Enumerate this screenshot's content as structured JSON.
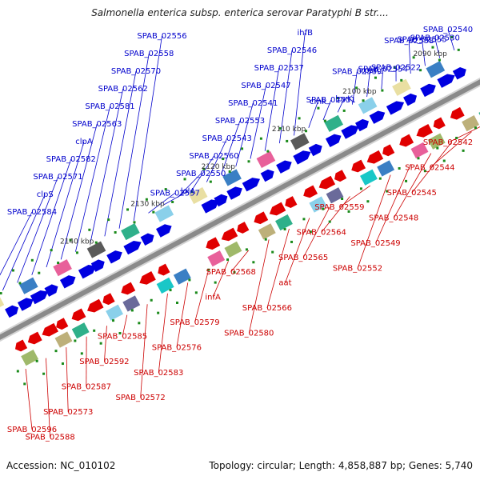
{
  "title": "Salmonella enterica subsp. enterica serovar Paratyphi B str....",
  "footer": {
    "accession": "Accession: NC_010102",
    "summary": "Topology: circular; Length: 4,858,887 bp; Genes: 5,740"
  },
  "colors": {
    "forward_label": "#0000cc",
    "reverse_label": "#cc0000",
    "backbone": "#8a8a8a",
    "forward_gene": "#0000e0",
    "reverse_gene": "#e00000",
    "marker": "#1a8a1a"
  },
  "scale_labels": [
    "2090 kbp",
    "2100 kbp",
    "2110 kbp",
    "2120 kbp",
    "2130 kbp",
    "2140 kbp"
  ],
  "forward_labels": [
    "SPAB_02540",
    "SPAB_02530",
    "SPAB_02555",
    "SPAB_02538",
    "SPAB_02522",
    "SPAB_02554",
    "rpsA",
    "SPAB_02539",
    "lpxK",
    "SPAB_02551",
    "cmk",
    "ihfB",
    "SPAB_02546",
    "SPAB_02537",
    "SPAB_02547",
    "SPAB_02541",
    "SPAB_02553",
    "SPAB_02543",
    "SPAB_02560",
    "SPAB_02550",
    "lolA",
    "SPAB_02557",
    "SPAB_02556",
    "SPAB_02558",
    "SPAB_02570",
    "SPAB_02562",
    "SPAB_02581",
    "SPAB_02563",
    "clpA",
    "SPAB_02582",
    "SPAB_02571",
    "clpS",
    "SPAB_02584"
  ],
  "reverse_labels": [
    "SPAB_02542",
    "SPAB_02544",
    "SPAB_02545",
    "SPAB_02548",
    "SPAB_02549",
    "SPAB_02552",
    "SPAB_02559",
    "SPAB_02564",
    "SPAB_02565",
    "aat",
    "SPAB_02566",
    "SPAB_02580",
    "SPAB_02568",
    "infA",
    "SPAB_02579",
    "SPAB_02576",
    "SPAB_02583",
    "SPAB_02572",
    "SPAB_02585",
    "SPAB_02592",
    "SPAB_02587",
    "SPAB_02573",
    "SPAB_02588",
    "SPAB_02596"
  ]
}
